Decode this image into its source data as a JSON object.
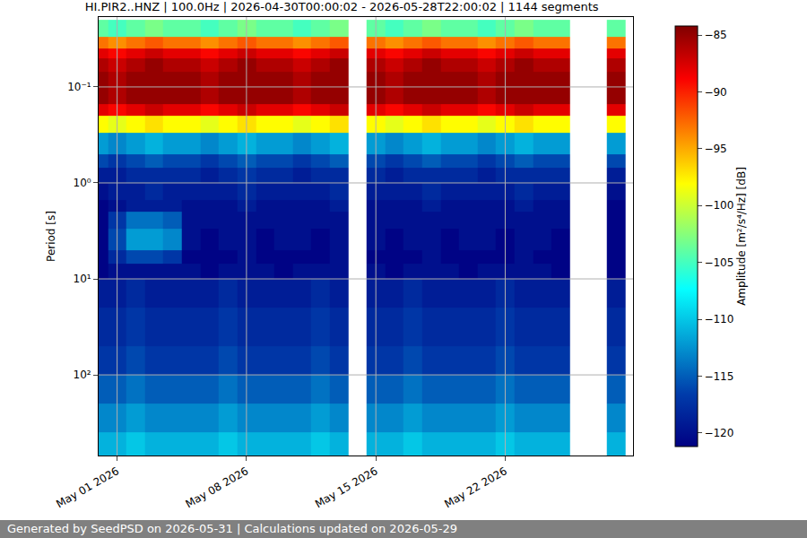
{
  "chart_data": {
    "type": "heatmap",
    "title": "HI.PIR2..HNZ | 100.0Hz | 2026-04-30T00:00:02 - 2026-05-28T22:00:02 | 1144 segments",
    "footer": "Generated by SeedPSD on 2026-05-31 | Calculations updated on 2026-05-29",
    "y_label": "Period [s]",
    "log": "y",
    "grid": true,
    "x": [
      "2026-04-30",
      "2026-05-01",
      "2026-05-02",
      "2026-05-03",
      "2026-05-04",
      "2026-05-05",
      "2026-05-06",
      "2026-05-07",
      "2026-05-08",
      "2026-05-09",
      "2026-05-10",
      "2026-05-11",
      "2026-05-12",
      "2026-05-13",
      "2026-05-14",
      "2026-05-15",
      "2026-05-16",
      "2026-05-17",
      "2026-05-18",
      "2026-05-19",
      "2026-05-20",
      "2026-05-21",
      "2026-05-22",
      "2026-05-23",
      "2026-05-24",
      "2026-05-25",
      "2026-05-26",
      "2026-05-27",
      "2026-05-28"
    ],
    "y_edges": [
      0.02,
      0.03,
      0.04,
      0.05,
      0.07,
      0.1,
      0.15,
      0.2,
      0.3,
      0.5,
      0.7,
      1,
      1.5,
      2,
      3,
      5,
      7,
      10,
      20,
      50,
      100,
      200,
      400,
      700
    ],
    "z": [
      [
        -104,
        -105,
        -104,
        -103,
        -104,
        -104,
        -105,
        -104,
        -103,
        -104,
        -104,
        -105,
        -104,
        -103,
        null,
        -104,
        -105,
        -104,
        -103,
        -104,
        -104,
        -105,
        -104,
        -103,
        -104,
        -104,
        null,
        null,
        -104
      ],
      [
        -93,
        -94,
        -93,
        -92,
        -93,
        -93,
        -94,
        -93,
        -92,
        -93,
        -93,
        -94,
        -93,
        -92,
        null,
        -93,
        -94,
        -93,
        -92,
        -93,
        -93,
        -94,
        -93,
        -92,
        -93,
        -93,
        null,
        null,
        -93
      ],
      [
        -88,
        -89,
        -88,
        -87,
        -88,
        -88,
        -89,
        -88,
        -87,
        -88,
        -88,
        -89,
        -88,
        -87,
        null,
        -88,
        -89,
        -88,
        -87,
        -88,
        -88,
        -89,
        -88,
        -87,
        -88,
        -88,
        null,
        null,
        -88
      ],
      [
        -86,
        -87,
        -86,
        -85,
        -86,
        -86,
        -87,
        -86,
        -85,
        -86,
        -86,
        -87,
        -86,
        -85,
        null,
        -86,
        -87,
        -86,
        -85,
        -86,
        -86,
        -87,
        -86,
        -85,
        -86,
        -86,
        null,
        null,
        -86
      ],
      [
        -85,
        -86,
        -85,
        -85,
        -85,
        -85,
        -86,
        -85,
        -85,
        -85,
        -85,
        -86,
        -85,
        -85,
        null,
        -85,
        -86,
        -85,
        -85,
        -85,
        -85,
        -86,
        -85,
        -85,
        -85,
        -85,
        null,
        null,
        -85
      ],
      [
        -85,
        -86,
        -85,
        -85,
        -85,
        -85,
        -86,
        -85,
        -85,
        -85,
        -85,
        -86,
        -85,
        -85,
        null,
        -85,
        -86,
        -85,
        -85,
        -85,
        -85,
        -86,
        -85,
        -85,
        -85,
        -85,
        null,
        null,
        -85
      ],
      [
        -88,
        -89,
        -88,
        -87,
        -88,
        -88,
        -89,
        -88,
        -87,
        -88,
        -88,
        -89,
        -88,
        -87,
        null,
        -88,
        -89,
        -88,
        -87,
        -88,
        -88,
        -89,
        -88,
        -87,
        -88,
        -88,
        null,
        null,
        -88
      ],
      [
        -98,
        -99,
        -98,
        -97,
        -98,
        -98,
        -99,
        -98,
        -97,
        -98,
        -98,
        -99,
        -98,
        -97,
        null,
        -98,
        -99,
        -98,
        -97,
        -98,
        -98,
        -99,
        -98,
        -97,
        -98,
        -98,
        null,
        null,
        -98
      ],
      [
        -112,
        -113,
        -112,
        -111,
        -112,
        -112,
        -113,
        -112,
        -111,
        -112,
        -112,
        -113,
        -112,
        -111,
        null,
        -112,
        -113,
        -112,
        -111,
        -112,
        -112,
        -113,
        -112,
        -111,
        -112,
        -112,
        null,
        null,
        -112
      ],
      [
        -116,
        -117,
        -116,
        -115,
        -116,
        -116,
        -117,
        -116,
        -115,
        -116,
        -116,
        -117,
        -116,
        -115,
        null,
        -116,
        -117,
        -116,
        -115,
        -116,
        -116,
        -117,
        -116,
        -115,
        -116,
        -116,
        null,
        null,
        -116
      ],
      [
        -119,
        -119,
        -118,
        -118,
        -118,
        -118,
        -119,
        -118,
        -117,
        -118,
        -118,
        -119,
        -118,
        -118,
        null,
        -118,
        -119,
        -118,
        -118,
        -118,
        -118,
        -119,
        -118,
        -118,
        -118,
        -118,
        null,
        null,
        -119
      ],
      [
        -120,
        -119,
        -119,
        -118,
        -119,
        -119,
        -119,
        -119,
        -118,
        -119,
        -119,
        -119,
        -119,
        -118,
        null,
        -119,
        -119,
        -119,
        -118,
        -119,
        -119,
        -119,
        -119,
        -118,
        -119,
        -119,
        null,
        null,
        -120
      ],
      [
        -121,
        -120,
        -119,
        -119,
        -119,
        -120,
        -120,
        -120,
        -119,
        -120,
        -120,
        -120,
        -120,
        -119,
        null,
        -120,
        -120,
        -120,
        -119,
        -120,
        -120,
        -120,
        -120,
        -119,
        -120,
        -120,
        null,
        null,
        -121
      ],
      [
        -121,
        -117,
        -114,
        -114,
        -115,
        -120,
        -120,
        -120,
        -120,
        -120,
        -120,
        -120,
        -120,
        -120,
        null,
        -120,
        -120,
        -120,
        -120,
        -120,
        -120,
        -120,
        -120,
        -120,
        -120,
        -120,
        null,
        null,
        -121
      ],
      [
        -121,
        -116,
        -112,
        -112,
        -113,
        -120,
        -121,
        -120,
        -120,
        -121,
        -120,
        -120,
        -121,
        -120,
        null,
        -120,
        -121,
        -120,
        -120,
        -121,
        -120,
        -120,
        -121,
        -120,
        -120,
        -121,
        null,
        null,
        -121
      ],
      [
        -121,
        -118,
        -116,
        -116,
        -117,
        -121,
        -121,
        -121,
        -120,
        -121,
        -121,
        -121,
        -121,
        -120,
        null,
        -121,
        -121,
        -121,
        -120,
        -121,
        -121,
        -121,
        -121,
        -120,
        -121,
        -121,
        null,
        null,
        -121
      ],
      [
        -121,
        -120,
        -120,
        -120,
        -120,
        -120,
        -121,
        -120,
        -120,
        -120,
        -121,
        -120,
        -120,
        -120,
        null,
        -120,
        -121,
        -120,
        -120,
        -120,
        -121,
        -120,
        -120,
        -120,
        -120,
        -121,
        null,
        null,
        -121
      ],
      [
        -119,
        -119,
        -118,
        -119,
        -119,
        -119,
        -119,
        -118,
        -119,
        -119,
        -119,
        -119,
        -118,
        -119,
        null,
        -119,
        -119,
        -118,
        -119,
        -119,
        -119,
        -119,
        -118,
        -119,
        -119,
        -119,
        null,
        null,
        -119
      ],
      [
        -118,
        -118,
        -117,
        -118,
        -118,
        -118,
        -118,
        -117,
        -118,
        -118,
        -118,
        -118,
        -117,
        -118,
        null,
        -118,
        -118,
        -117,
        -118,
        -118,
        -118,
        -118,
        -117,
        -118,
        -118,
        -118,
        null,
        null,
        -118
      ],
      [
        -117,
        -117,
        -116,
        -117,
        -117,
        -117,
        -117,
        -116,
        -117,
        -117,
        -117,
        -117,
        -116,
        -117,
        null,
        -117,
        -117,
        -116,
        -117,
        -117,
        -117,
        -117,
        -116,
        -117,
        -117,
        -117,
        null,
        null,
        -117
      ],
      [
        -115,
        -115,
        -114,
        -115,
        -115,
        -115,
        -115,
        -114,
        -115,
        -115,
        -115,
        -115,
        -114,
        -115,
        null,
        -115,
        -115,
        -114,
        -115,
        -115,
        -115,
        -115,
        -114,
        -115,
        -115,
        -115,
        null,
        null,
        -115
      ],
      [
        -113,
        -113,
        -112,
        -113,
        -113,
        -113,
        -113,
        -112,
        -113,
        -113,
        -113,
        -113,
        -112,
        -113,
        null,
        -113,
        -113,
        -112,
        -113,
        -113,
        -113,
        -113,
        -112,
        -113,
        -113,
        -113,
        null,
        null,
        -113
      ],
      [
        -111,
        -111,
        -110,
        -111,
        -111,
        -111,
        -111,
        -110,
        -111,
        -111,
        -111,
        -111,
        -110,
        -111,
        null,
        -111,
        -111,
        -110,
        -111,
        -111,
        -111,
        -111,
        -110,
        -111,
        -111,
        -111,
        null,
        null,
        -111
      ]
    ],
    "xlim": [
      "2026-04-30 00:00",
      "2026-05-28 22:00"
    ],
    "xticks": [
      {
        "value": "2026-05-01",
        "label": "May 01 2026"
      },
      {
        "value": "2026-05-08",
        "label": "May 08 2026"
      },
      {
        "value": "2026-05-15",
        "label": "May 15 2026"
      },
      {
        "value": "2026-05-22",
        "label": "May 22 2026"
      }
    ],
    "ylim": [
      0.0187,
      692
    ],
    "yticks": [
      {
        "value": 0.1,
        "label": "10⁻¹"
      },
      {
        "value": 1,
        "label": "10⁰"
      },
      {
        "value": 10,
        "label": "10¹"
      },
      {
        "value": 100,
        "label": "10²"
      }
    ],
    "colorbar": {
      "title": "Amplitude [m²/s⁴/Hz] [dB]",
      "zlim": [
        -121.2,
        -84.2
      ],
      "ticks": [
        -85,
        -90,
        -95,
        -100,
        -105,
        -110,
        -115,
        -120
      ]
    }
  }
}
